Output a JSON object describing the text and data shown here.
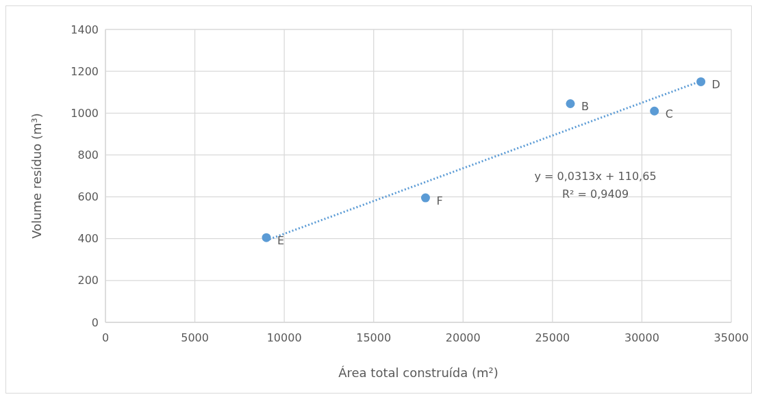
{
  "chart_data": {
    "type": "scatter",
    "xlabel": "Área total construída (m²)",
    "ylabel": "Volume resíduo (m³)",
    "xlim": [
      0,
      35000
    ],
    "xticks": [
      0,
      5000,
      10000,
      15000,
      20000,
      25000,
      30000,
      35000
    ],
    "ylim": [
      0,
      1400
    ],
    "yticks": [
      0,
      200,
      400,
      600,
      800,
      1000,
      1200,
      1400
    ],
    "grid": true,
    "marker": "circle",
    "series": [
      {
        "type": "scatter",
        "color": "#5b9bd5",
        "x": [
          26000,
          30700,
          33300,
          9000,
          17900
        ],
        "values": [
          1045,
          1010,
          1150,
          405,
          595
        ]
      },
      {
        "type": "line",
        "color": "#5b9bd5",
        "line_style": "dotted",
        "marker": "none",
        "x": [
          9000,
          33300
        ],
        "values": [
          392,
          1153
        ]
      }
    ],
    "annotations": [
      {
        "text": "B",
        "x": 26000,
        "y": 1045
      },
      {
        "text": "C",
        "x": 30700,
        "y": 1010
      },
      {
        "text": "D",
        "x": 33300,
        "y": 1150
      },
      {
        "text": "E",
        "x": 9000,
        "y": 405
      },
      {
        "text": "F",
        "x": 17900,
        "y": 595
      },
      "y = 0,0313x + 110,65",
      "R² = 0,9409"
    ]
  }
}
